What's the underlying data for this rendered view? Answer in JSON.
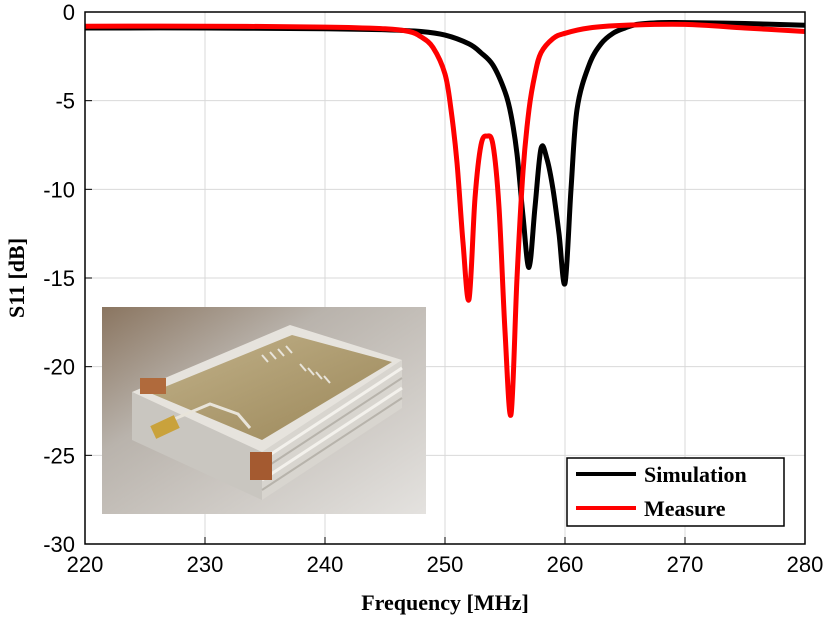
{
  "chart_data": {
    "type": "line",
    "title": "",
    "xlabel": "Frequency [MHz]",
    "ylabel": "S11 [dB]",
    "xlim": [
      220,
      280
    ],
    "ylim": [
      -30,
      0
    ],
    "xticks": [
      220,
      230,
      240,
      250,
      260,
      270,
      280
    ],
    "yticks": [
      0,
      -5,
      -10,
      -15,
      -20,
      -25,
      -30
    ],
    "xtick_labels": [
      "220",
      "230",
      "240",
      "250",
      "260",
      "270",
      "280"
    ],
    "ytick_labels": [
      "0",
      "-5",
      "-10",
      "-15",
      "-20",
      "-25",
      "-30"
    ],
    "grid": true,
    "legend_position": "bottom-right",
    "series": [
      {
        "name": "Simulation",
        "color": "#000000",
        "x": [
          220,
          230,
          240,
          245,
          248,
          250,
          252,
          253,
          254,
          255,
          255.5,
          256,
          256.5,
          257,
          257.5,
          258,
          258.5,
          259,
          259.5,
          260,
          260.5,
          261,
          262,
          263,
          264,
          265,
          266,
          268,
          270,
          275,
          280
        ],
        "y": [
          -0.9,
          -0.9,
          -0.95,
          -1.0,
          -1.1,
          -1.3,
          -1.8,
          -2.3,
          -3.0,
          -4.5,
          -5.8,
          -8.0,
          -11.5,
          -14.4,
          -11.0,
          -7.7,
          -8.3,
          -10.0,
          -12.5,
          -15.3,
          -10.0,
          -5.5,
          -3.0,
          -1.8,
          -1.2,
          -0.9,
          -0.7,
          -0.6,
          -0.6,
          -0.65,
          -0.75
        ]
      },
      {
        "name": "Measure",
        "color": "#ff0000",
        "x": [
          220,
          230,
          240,
          245,
          247,
          248,
          249,
          250,
          250.5,
          251,
          251.5,
          252,
          252.5,
          253,
          253.5,
          254,
          254.5,
          255,
          255.5,
          256,
          256.5,
          257,
          257.5,
          258,
          259,
          260,
          262,
          265,
          270,
          275,
          280
        ],
        "y": [
          -0.8,
          -0.8,
          -0.85,
          -0.95,
          -1.1,
          -1.4,
          -2.0,
          -3.5,
          -5.5,
          -8.5,
          -13.0,
          -16.2,
          -10.5,
          -7.5,
          -7.0,
          -7.5,
          -11.0,
          -18.0,
          -22.7,
          -15.0,
          -9.0,
          -5.5,
          -3.5,
          -2.3,
          -1.5,
          -1.2,
          -0.9,
          -0.75,
          -0.7,
          -0.9,
          -1.1
        ]
      }
    ]
  },
  "inset_photo": {
    "description_icon": "device-photo"
  }
}
